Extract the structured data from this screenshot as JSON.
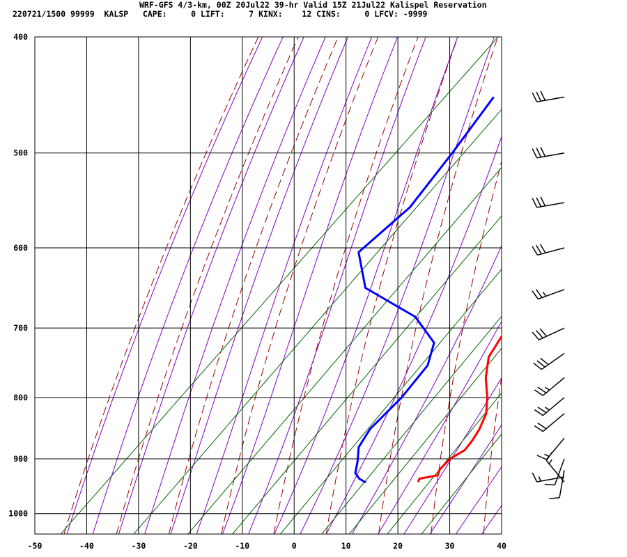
{
  "header": {
    "line1": "WRF-GFS 4/3-km, 00Z 20Jul22 39-hr Valid 15Z 21Jul22 Kalispel Reservation",
    "line2": "220721/1500 99999  KALSP   CAPE:     0 LIFT:     7 KINX:    12 CINS:     0 LFCV: -9999"
  },
  "chart_data": {
    "type": "line",
    "title": "WRF-GFS 4/3-km, 00Z 20Jul22 39-hr Valid 15Z 21Jul22 Kalispel Reservation",
    "subtitle": "220721/1500 99999  KALSP   CAPE:     0 LIFT:     7 KINX:    12 CINS:     0 LFCV: -9999",
    "xlabel": "",
    "ylabel": "",
    "x_axis": {
      "ticks": [
        -50,
        -40,
        -30,
        -20,
        -10,
        0,
        10,
        20,
        30,
        40
      ],
      "range": [
        -50,
        40
      ]
    },
    "y_axis": {
      "ticks": [
        400,
        500,
        600,
        700,
        800,
        900,
        1000
      ],
      "range": [
        400,
        1040
      ],
      "scale": "log-p"
    },
    "grid": true,
    "colors": {
      "temperature": "#ff0000",
      "dewpoint": "#0000ff",
      "dry_adiabat": "#990000",
      "moist_adiabat": "#8000c0",
      "mixing_ratio": "#006600",
      "grid": "#000000",
      "wind_barb": "#000000"
    },
    "series": [
      {
        "key": "temperature",
        "points": [
          {
            "p": 449,
            "t": -16.5
          },
          {
            "p": 500,
            "t": -10.2
          },
          {
            "p": 550,
            "t": -4.5
          },
          {
            "p": 600,
            "t": 0
          },
          {
            "p": 650,
            "t": 3.5
          },
          {
            "p": 700,
            "t": 6.3
          },
          {
            "p": 740,
            "t": 8.2
          },
          {
            "p": 770,
            "t": 11.5
          },
          {
            "p": 800,
            "t": 15.5
          },
          {
            "p": 825,
            "t": 18.3
          },
          {
            "p": 850,
            "t": 19.9
          },
          {
            "p": 870,
            "t": 20.7
          },
          {
            "p": 885,
            "t": 21.0
          },
          {
            "p": 900,
            "t": 19.8
          },
          {
            "p": 918,
            "t": 19.8
          },
          {
            "p": 929,
            "t": 20.5
          },
          {
            "p": 935,
            "t": 17.6
          },
          {
            "p": 941,
            "t": 18.0
          }
        ]
      },
      {
        "key": "dewpoint",
        "points": [
          {
            "p": 449,
            "t": -39.5
          },
          {
            "p": 500,
            "t": -37.0
          },
          {
            "p": 555,
            "t": -35.0
          },
          {
            "p": 605,
            "t": -36.5
          },
          {
            "p": 648,
            "t": -28.5
          },
          {
            "p": 685,
            "t": -13.5
          },
          {
            "p": 720,
            "t": -5.0
          },
          {
            "p": 752,
            "t": -2.0
          },
          {
            "p": 800,
            "t": -1.0
          },
          {
            "p": 850,
            "t": -1.2
          },
          {
            "p": 880,
            "t": 0
          },
          {
            "p": 905,
            "t": 2.5
          },
          {
            "p": 925,
            "t": 4.2
          },
          {
            "p": 935,
            "t": 6.0
          },
          {
            "p": 942,
            "t": 8.0
          }
        ]
      }
    ],
    "wind_barbs": [
      {
        "p": 449,
        "dir": 260,
        "kt": 30
      },
      {
        "p": 500,
        "dir": 260,
        "kt": 30
      },
      {
        "p": 550,
        "dir": 260,
        "kt": 30
      },
      {
        "p": 600,
        "dir": 255,
        "kt": 30
      },
      {
        "p": 650,
        "dir": 250,
        "kt": 25
      },
      {
        "p": 700,
        "dir": 245,
        "kt": 30
      },
      {
        "p": 735,
        "dir": 235,
        "kt": 30
      },
      {
        "p": 770,
        "dir": 230,
        "kt": 25
      },
      {
        "p": 800,
        "dir": 230,
        "kt": 25
      },
      {
        "p": 825,
        "dir": 230,
        "kt": 20
      },
      {
        "p": 865,
        "dir": 220,
        "kt": 15
      },
      {
        "p": 900,
        "dir": 200,
        "kt": 10
      },
      {
        "p": 920,
        "dir": 190,
        "kt": 10
      },
      {
        "p": 932,
        "dir": 260,
        "kt": 15
      },
      {
        "p": 941,
        "dir": 320,
        "kt": 15
      }
    ]
  }
}
